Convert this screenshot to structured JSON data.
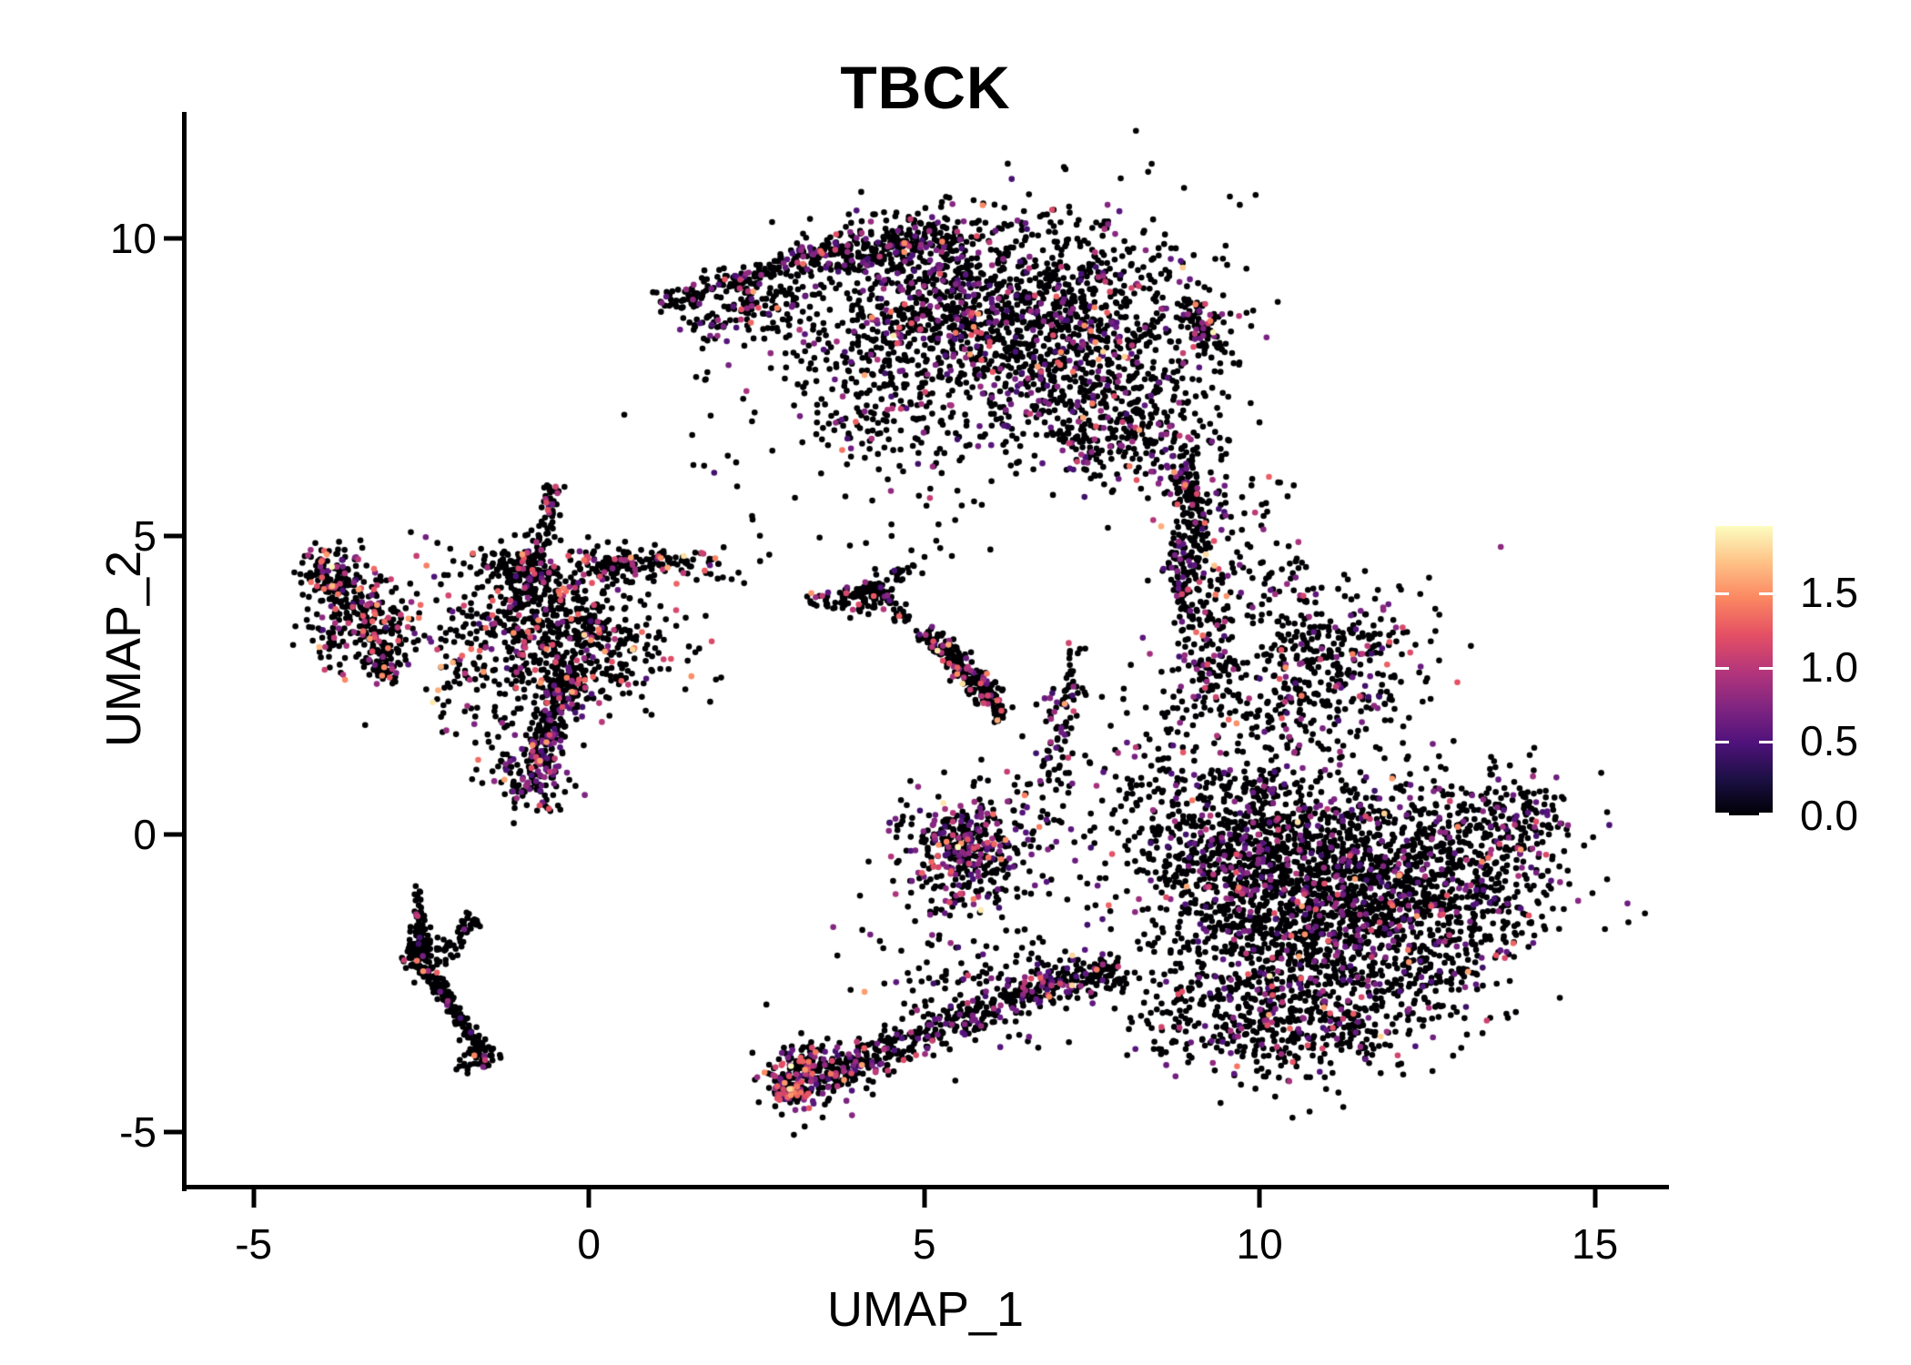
{
  "title": "TBCK",
  "chart_data": {
    "type": "scatter",
    "title": "TBCK",
    "xlabel": "UMAP_1",
    "ylabel": "UMAP_2",
    "xlim": [
      -6.0,
      16.05
    ],
    "ylim": [
      -5.88,
      12.09
    ],
    "grid": false,
    "x_ticks": {
      "values": [
        -5,
        0,
        5,
        10,
        15
      ],
      "labels": [
        "-5",
        "0",
        "5",
        "10",
        "15"
      ]
    },
    "y_ticks": {
      "values": [
        -5,
        0,
        5,
        10
      ],
      "labels": [
        "-5",
        "0",
        "5",
        "10"
      ]
    },
    "legend": {
      "type": "colorbar",
      "position": "right",
      "colormap": "magma",
      "domain": [
        0,
        1.95
      ],
      "ticks": {
        "values": [
          0.0,
          0.5,
          1.0,
          1.5
        ],
        "labels": [
          "0.0",
          "0.5",
          "1.0",
          "1.5"
        ]
      }
    },
    "colormap_stops": [
      "#000004",
      "#1c1044",
      "#4f127b",
      "#812581",
      "#b5367a",
      "#e55064",
      "#fb8761",
      "#fec287",
      "#fcfdbf"
    ],
    "point_radius_px": 3.3,
    "seed": 7,
    "value_profiles": {
      "default": [
        [
          0.4,
          0.85,
          0.5
        ],
        [
          0.85,
          1.25,
          0.33
        ],
        [
          1.25,
          1.6,
          0.14
        ],
        [
          1.6,
          1.95,
          0.03
        ]
      ],
      "purple": [
        [
          0.4,
          0.85,
          0.72
        ],
        [
          0.85,
          1.25,
          0.2
        ],
        [
          1.25,
          1.6,
          0.07
        ],
        [
          1.6,
          1.95,
          0.01
        ]
      ],
      "pink": [
        [
          0.4,
          0.85,
          0.34
        ],
        [
          0.85,
          1.3,
          0.44
        ],
        [
          1.3,
          1.65,
          0.19
        ],
        [
          1.65,
          1.95,
          0.03
        ]
      ]
    },
    "clusters": [
      {
        "name": "top-crescent",
        "expr_frac": 0.17,
        "profile": "purple",
        "blobs": [
          {
            "shape": "strip",
            "a": [
              1.1,
              8.85
            ],
            "b": [
              3.1,
              9.65
            ],
            "w": 0.22,
            "n": 150
          },
          {
            "shape": "strip",
            "a": [
              1.5,
              8.45
            ],
            "b": [
              3.1,
              9.15
            ],
            "w": 0.28,
            "n": 90
          },
          {
            "shape": "strip",
            "a": [
              3.1,
              9.7
            ],
            "b": [
              5.6,
              10.0
            ],
            "w": 0.33,
            "n": 300
          },
          {
            "shape": "gauss",
            "c": [
              5.1,
              8.95
            ],
            "s": [
              0.85,
              0.6
            ],
            "n": 420
          },
          {
            "shape": "gauss",
            "c": [
              6.9,
              8.45
            ],
            "s": [
              1.15,
              0.95
            ],
            "n": 1250
          },
          {
            "shape": "gauss",
            "c": [
              8.0,
              6.8
            ],
            "s": [
              0.7,
              0.5
            ],
            "n": 260
          },
          {
            "shape": "gauss",
            "c": [
              4.4,
              7.9
            ],
            "s": [
              0.75,
              0.7
            ],
            "n": 130
          },
          {
            "shape": "gauss",
            "c": [
              4.35,
              6.9
            ],
            "s": [
              0.8,
              0.5
            ],
            "n": 110
          },
          {
            "shape": "strip",
            "a": [
              8.95,
              8.9
            ],
            "b": [
              9.35,
              8.1
            ],
            "w": 0.25,
            "n": 90
          },
          {
            "shape": "strip",
            "a": [
              8.75,
              6.4
            ],
            "b": [
              9.2,
              5.0
            ],
            "w": 0.3,
            "n": 110
          },
          {
            "shape": "strip",
            "a": [
              9.0,
              5.0
            ],
            "b": [
              8.75,
              4.1
            ],
            "w": 0.3,
            "n": 60
          },
          {
            "shape": "gauss",
            "c": [
              5.3,
              10.3
            ],
            "s": [
              0.8,
              0.18
            ],
            "n": 35
          },
          {
            "shape": "gauss",
            "c": [
              2.9,
              8.6
            ],
            "s": [
              0.55,
              0.4
            ],
            "n": 60
          }
        ]
      },
      {
        "name": "right-mass",
        "expr_frac": 0.16,
        "profile": "purple",
        "blobs": [
          {
            "shape": "gauss",
            "c": [
              11.3,
              -1.2
            ],
            "s": [
              1.25,
              1.0
            ],
            "n": 2000
          },
          {
            "shape": "gauss",
            "c": [
              9.9,
              -0.1
            ],
            "s": [
              0.8,
              0.9
            ],
            "n": 620
          },
          {
            "shape": "gauss",
            "c": [
              10.5,
              -3.2
            ],
            "s": [
              0.85,
              0.5
            ],
            "n": 360
          },
          {
            "shape": "gauss",
            "c": [
              13.3,
              -0.3
            ],
            "s": [
              0.65,
              0.75
            ],
            "n": 280
          },
          {
            "shape": "gauss",
            "c": [
              14.0,
              0.3
            ],
            "s": [
              0.3,
              0.4
            ],
            "n": 70
          },
          {
            "shape": "gauss",
            "c": [
              10.9,
              2.8
            ],
            "s": [
              0.8,
              0.7
            ],
            "n": 430
          },
          {
            "shape": "strip",
            "a": [
              8.85,
              4.6
            ],
            "b": [
              9.4,
              2.2
            ],
            "w": 0.45,
            "n": 160
          },
          {
            "shape": "gauss",
            "c": [
              8.45,
              0.6
            ],
            "s": [
              0.5,
              1.1
            ],
            "n": 150
          },
          {
            "shape": "gauss",
            "c": [
              10.2,
              4.4
            ],
            "s": [
              0.5,
              0.35
            ],
            "n": 50
          },
          {
            "shape": "gauss",
            "c": [
              9.9,
              5.8
            ],
            "s": [
              0.35,
              0.35
            ],
            "n": 16
          }
        ]
      },
      {
        "name": "left-small",
        "expr_frac": 0.22,
        "profile": "pink",
        "blobs": [
          {
            "shape": "gauss",
            "c": [
              -3.35,
              3.6
            ],
            "s": [
              0.4,
              0.45
            ],
            "n": 260
          },
          {
            "shape": "strip",
            "a": [
              -4.15,
              4.35
            ],
            "b": [
              -3.5,
              3.95
            ],
            "w": 0.28,
            "n": 70
          },
          {
            "shape": "gauss",
            "c": [
              -3.8,
              4.55
            ],
            "s": [
              0.22,
              0.22
            ],
            "n": 50
          },
          {
            "shape": "strip",
            "a": [
              -3.3,
              3.0
            ],
            "b": [
              -2.9,
              2.55
            ],
            "w": 0.22,
            "n": 60
          }
        ]
      },
      {
        "name": "left-large",
        "expr_frac": 0.18,
        "profile": "pink",
        "blobs": [
          {
            "shape": "gauss",
            "c": [
              -0.6,
              3.5
            ],
            "s": [
              0.6,
              0.65
            ],
            "n": 520
          },
          {
            "shape": "strip",
            "a": [
              -0.75,
              4.6
            ],
            "b": [
              -0.55,
              5.85
            ],
            "w": 0.18,
            "n": 70
          },
          {
            "shape": "strip",
            "a": [
              -1.5,
              4.5
            ],
            "b": [
              -0.6,
              4.35
            ],
            "w": 0.25,
            "n": 90
          },
          {
            "shape": "strip",
            "a": [
              -0.1,
              4.5
            ],
            "b": [
              1.45,
              4.6
            ],
            "w": 0.26,
            "n": 130
          },
          {
            "shape": "gauss",
            "c": [
              1.8,
              4.55
            ],
            "s": [
              0.3,
              0.18
            ],
            "n": 25
          },
          {
            "shape": "gauss",
            "c": [
              0.5,
              3.1
            ],
            "s": [
              0.6,
              0.5
            ],
            "n": 150
          },
          {
            "shape": "gauss",
            "c": [
              -1.6,
              2.6
            ],
            "s": [
              0.45,
              0.6
            ],
            "n": 90
          },
          {
            "shape": "gauss",
            "c": [
              -1.9,
              3.9
            ],
            "s": [
              0.7,
              0.6
            ],
            "n": 70
          }
        ]
      },
      {
        "name": "left-bottom-arm",
        "expr_frac": 0.3,
        "profile": "purple",
        "blobs": [
          {
            "shape": "strip",
            "a": [
              -0.3,
              2.7
            ],
            "b": [
              -0.75,
              1.2
            ],
            "w": 0.28,
            "n": 220
          },
          {
            "shape": "gauss",
            "c": [
              -0.85,
              0.95
            ],
            "s": [
              0.3,
              0.25
            ],
            "n": 120
          }
        ]
      },
      {
        "name": "v-streak",
        "expr_frac": 0.05,
        "profile": "purple",
        "blobs": [
          {
            "shape": "strip",
            "a": [
              -2.55,
              -1.25
            ],
            "b": [
              -2.48,
              -2.0
            ],
            "w": 0.1,
            "n": 60
          },
          {
            "shape": "gauss",
            "c": [
              -2.5,
              -2.05
            ],
            "s": [
              0.12,
              0.18
            ],
            "n": 80
          },
          {
            "shape": "strip",
            "a": [
              -2.45,
              -2.2
            ],
            "b": [
              -1.63,
              -3.6
            ],
            "w": 0.12,
            "n": 140
          },
          {
            "shape": "gauss",
            "c": [
              -1.68,
              -3.75
            ],
            "s": [
              0.16,
              0.12
            ],
            "n": 50
          },
          {
            "shape": "strip",
            "a": [
              -2.3,
              -2.15
            ],
            "b": [
              -1.7,
              -1.4
            ],
            "w": 0.14,
            "n": 55
          },
          {
            "shape": "gauss",
            "c": [
              -2.52,
              -0.95
            ],
            "s": [
              0.05,
              0.15
            ],
            "n": 8
          }
        ]
      },
      {
        "name": "mid-y-small",
        "expr_frac": 0.1,
        "profile": "default",
        "blobs": [
          {
            "shape": "strip",
            "a": [
              3.3,
              3.9
            ],
            "b": [
              4.3,
              4.05
            ],
            "w": 0.18,
            "n": 50
          },
          {
            "shape": "strip",
            "a": [
              4.3,
              4.05
            ],
            "b": [
              4.9,
              4.55
            ],
            "w": 0.14,
            "n": 30
          },
          {
            "shape": "strip",
            "a": [
              4.3,
              4.05
            ],
            "b": [
              4.75,
              3.6
            ],
            "w": 0.14,
            "n": 25
          },
          {
            "shape": "gauss",
            "c": [
              4.15,
              4.0
            ],
            "s": [
              0.16,
              0.16
            ],
            "n": 40
          }
        ]
      },
      {
        "name": "mid-streak",
        "expr_frac": 0.16,
        "profile": "default",
        "blobs": [
          {
            "shape": "strip",
            "a": [
              5.0,
              3.4
            ],
            "b": [
              6.0,
              2.3
            ],
            "w": 0.2,
            "n": 200
          },
          {
            "shape": "strip",
            "a": [
              6.0,
              2.3
            ],
            "b": [
              6.2,
              1.9
            ],
            "w": 0.14,
            "n": 30
          }
        ]
      },
      {
        "name": "small-dense",
        "expr_frac": 0.28,
        "profile": "purple",
        "blobs": [
          {
            "shape": "gauss",
            "c": [
              5.65,
              -0.2
            ],
            "s": [
              0.35,
              0.33
            ],
            "n": 260
          },
          {
            "shape": "gauss",
            "c": [
              5.55,
              -0.9
            ],
            "s": [
              0.5,
              0.35
            ],
            "n": 90
          },
          {
            "shape": "gauss",
            "c": [
              4.9,
              0.1
            ],
            "s": [
              0.35,
              0.4
            ],
            "n": 40
          },
          {
            "shape": "gauss",
            "c": [
              6.6,
              0.3
            ],
            "s": [
              0.45,
              0.65
            ],
            "n": 70
          },
          {
            "shape": "strip",
            "a": [
              6.9,
              0.8
            ],
            "b": [
              7.1,
              2.4
            ],
            "w": 0.28,
            "n": 70
          },
          {
            "shape": "strip",
            "a": [
              7.1,
              2.4
            ],
            "b": [
              7.25,
              3.2
            ],
            "w": 0.2,
            "n": 20
          }
        ]
      },
      {
        "name": "bottom-left-blob",
        "expr_frac": 0.38,
        "profile": "default",
        "blobs": [
          {
            "shape": "gauss",
            "c": [
              3.25,
              -4.05
            ],
            "s": [
              0.33,
              0.28
            ],
            "n": 230
          },
          {
            "shape": "strip",
            "a": [
              2.75,
              -4.35
            ],
            "b": [
              3.15,
              -4.3
            ],
            "w": 0.18,
            "n": 60
          }
        ]
      },
      {
        "name": "bottom-band",
        "expr_frac": 0.2,
        "profile": "purple",
        "blobs": [
          {
            "shape": "strip",
            "a": [
              3.7,
              -4.0
            ],
            "b": [
              6.6,
              -2.6
            ],
            "w": 0.33,
            "n": 330
          },
          {
            "shape": "strip",
            "a": [
              6.6,
              -2.6
            ],
            "b": [
              7.9,
              -2.3
            ],
            "w": 0.4,
            "n": 160
          },
          {
            "shape": "gauss",
            "c": [
              5.6,
              -2.55
            ],
            "s": [
              0.8,
              0.5
            ],
            "n": 120
          }
        ]
      },
      {
        "name": "sparse-noise",
        "expr_frac": 0.1,
        "profile": "default",
        "blobs": [
          {
            "shape": "gauss",
            "c": [
              1.6,
              7.0
            ],
            "s": [
              0.5,
              0.9
            ],
            "n": 18
          },
          {
            "shape": "gauss",
            "c": [
              5.0,
              5.6
            ],
            "s": [
              0.8,
              0.6
            ],
            "n": 25
          },
          {
            "shape": "gauss",
            "c": [
              8.8,
              -2.6
            ],
            "s": [
              0.6,
              0.6
            ],
            "n": 90
          },
          {
            "shape": "gauss",
            "c": [
              9.1,
              5.3
            ],
            "s": [
              0.35,
              0.8
            ],
            "n": 70
          },
          {
            "shape": "gauss",
            "c": [
              2.6,
              5.0
            ],
            "s": [
              0.4,
              0.5
            ],
            "n": 10
          }
        ]
      }
    ]
  }
}
